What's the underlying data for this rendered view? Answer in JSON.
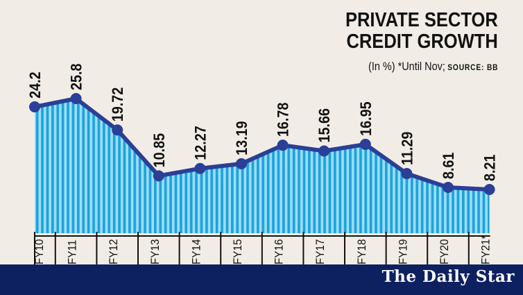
{
  "header": {
    "title_line1": "PRIVATE SECTOR",
    "title_line2": "CREDIT GROWTH",
    "subtitle": "(In %) *Until Nov;",
    "source": "SOURCE: BB"
  },
  "footer": {
    "brand": "The Daily Star"
  },
  "colors": {
    "line": "#2b3f97",
    "fill_dark": "#1aa3df",
    "fill_light": "#9fdcf5",
    "footer": "#0d2060",
    "background": "#f1ede6"
  },
  "chart_data": {
    "type": "area",
    "title": "PRIVATE SECTOR CREDIT GROWTH",
    "subtitle": "(In %) *Until Nov; SOURCE: BB",
    "categories": [
      "FY10",
      "FY11",
      "FY12",
      "FY13",
      "FY14",
      "FY15",
      "FY16",
      "FY17",
      "FY18",
      "FY19",
      "FY20",
      "FY21*"
    ],
    "values": [
      24.2,
      25.8,
      19.72,
      10.85,
      12.27,
      13.19,
      16.78,
      15.66,
      16.95,
      11.29,
      8.61,
      8.21
    ],
    "labels": [
      "24.2",
      "25.8",
      "19.72",
      "10.85",
      "12.27",
      "13.19",
      "16.78",
      "15.66",
      "16.95",
      "11.29",
      "8.61",
      "8.21"
    ],
    "xlabel": "",
    "ylabel": "In %",
    "grid": false,
    "legend": false,
    "annotations": [
      "*Until Nov"
    ]
  }
}
